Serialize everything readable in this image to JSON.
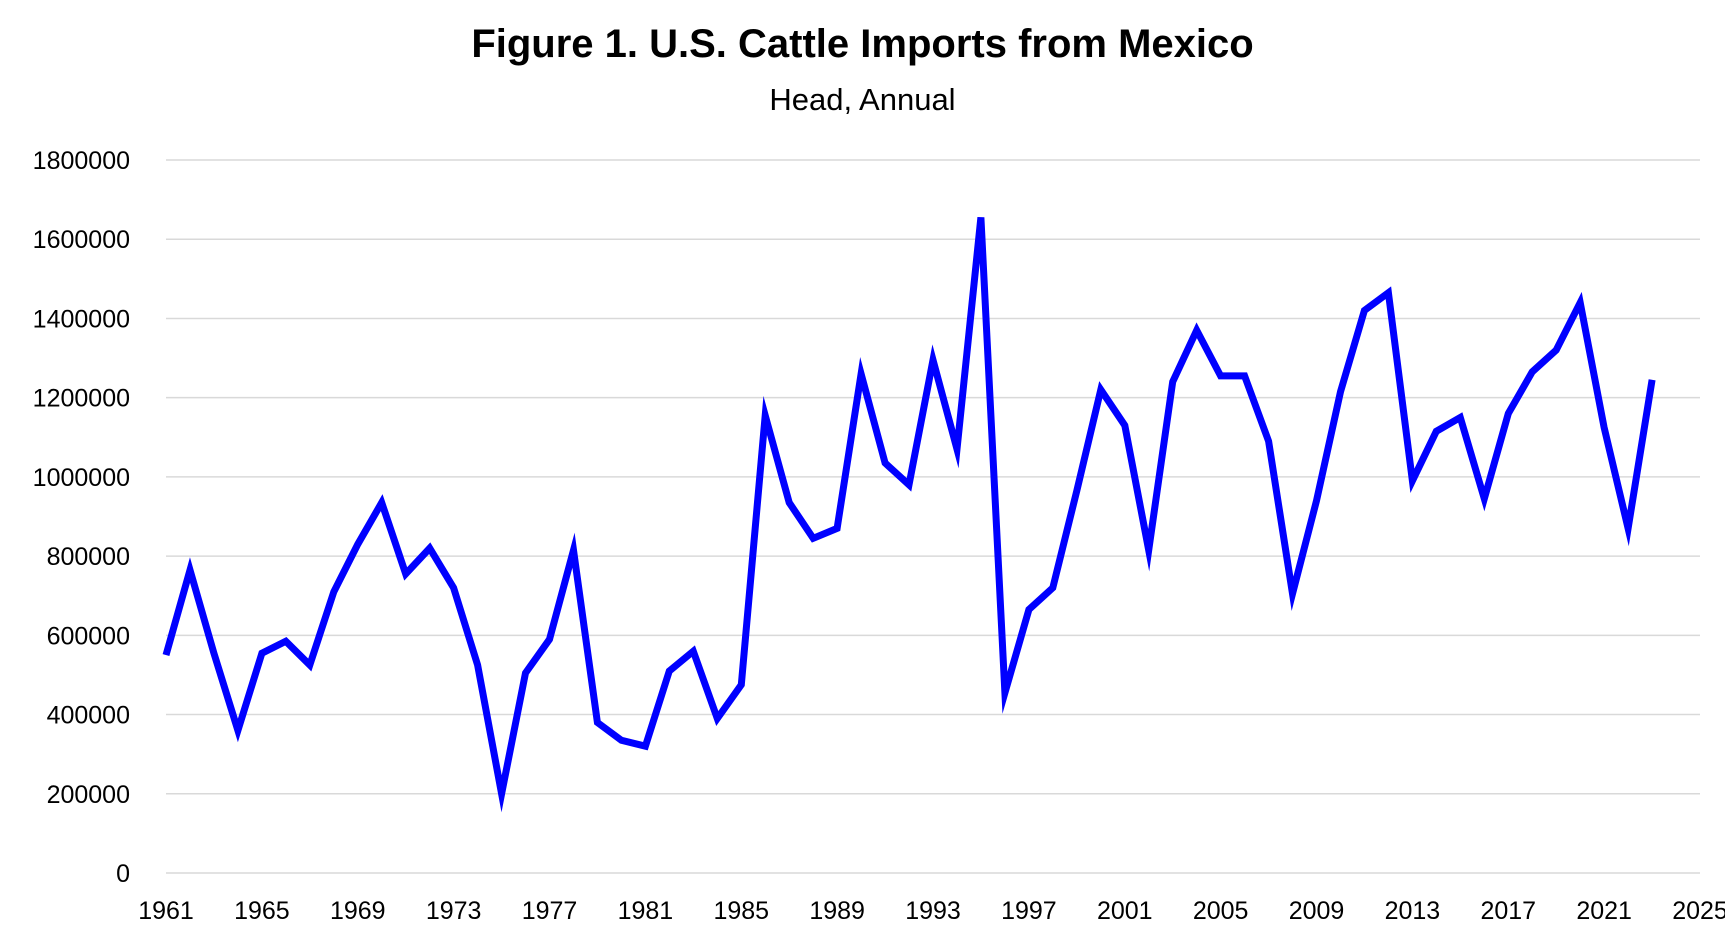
{
  "chart_data": {
    "type": "line",
    "title": "Figure 1. U.S. Cattle Imports from Mexico",
    "subtitle": "Head, Annual",
    "xlabel": "",
    "ylabel": "",
    "xlim": [
      1961,
      2025
    ],
    "ylim": [
      0,
      1800000
    ],
    "grid": "horizontal",
    "legend": "none",
    "line_color": "#0000FF",
    "grid_color": "#D9D9D9",
    "x_ticks": [
      "1961",
      "1965",
      "1969",
      "1973",
      "1977",
      "1981",
      "1985",
      "1989",
      "1993",
      "1997",
      "2001",
      "2005",
      "2009",
      "2013",
      "2017",
      "2021",
      "2025"
    ],
    "y_ticks": [
      "0",
      "200000",
      "400000",
      "600000",
      "800000",
      "1000000",
      "1200000",
      "1400000",
      "1600000",
      "1800000"
    ],
    "series": [
      {
        "x": [
          1961,
          1962,
          1963,
          1964,
          1965,
          1966,
          1967,
          1968,
          1969,
          1970,
          1971,
          1972,
          1973,
          1974,
          1975,
          1976,
          1977,
          1978,
          1979,
          1980,
          1981,
          1982,
          1983,
          1984,
          1985,
          1986,
          1987,
          1988,
          1989,
          1990,
          1991,
          1992,
          1993,
          1994,
          1995,
          1996,
          1997,
          1998,
          1999,
          2000,
          2001,
          2002,
          2003,
          2004,
          2005,
          2006,
          2007,
          2008,
          2009,
          2010,
          2011,
          2012,
          2013,
          2014,
          2015,
          2016,
          2017,
          2018,
          2019,
          2020,
          2021,
          2022,
          2023
        ],
        "values": [
          550000,
          765000,
          555000,
          360000,
          555000,
          585000,
          525000,
          710000,
          830000,
          935000,
          755000,
          820000,
          720000,
          525000,
          200000,
          505000,
          590000,
          815000,
          380000,
          335000,
          320000,
          510000,
          560000,
          390000,
          475000,
          1155000,
          935000,
          845000,
          870000,
          1260000,
          1035000,
          980000,
          1295000,
          1070000,
          1655000,
          455000,
          665000,
          720000,
          965000,
          1220000,
          1130000,
          815000,
          1240000,
          1370000,
          1255000,
          1255000,
          1090000,
          705000,
          940000,
          1215000,
          1420000,
          1465000,
          990000,
          1115000,
          1150000,
          945000,
          1160000,
          1265000,
          1320000,
          1440000,
          1125000,
          870000,
          1245000
        ]
      }
    ]
  }
}
